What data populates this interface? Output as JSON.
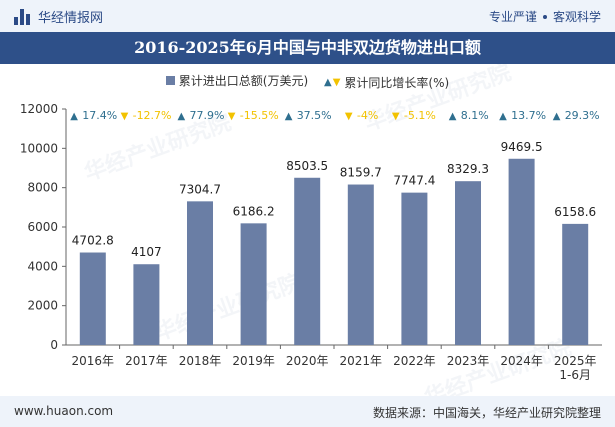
{
  "header": {
    "brand": "华经情报网",
    "tagline_left": "专业严谨",
    "tagline_right": "客观科学"
  },
  "title": "2016-2025年6月中国与中非双边货物进出口额",
  "legend": {
    "bar_label": "累计进出口总额(万美元)",
    "line_label": "累计同比增长率(%)"
  },
  "watermark": "华经产业研究院",
  "footer": {
    "site": "www.huaon.com",
    "source": "数据来源：中国海关，华经产业研究院整理"
  },
  "colors": {
    "bar": "#6a7ea5",
    "up": "#2f6f8f",
    "down": "#f2c200",
    "title_bg": "#2e5089"
  },
  "chart_data": {
    "type": "bar",
    "categories": [
      "2016年",
      "2017年",
      "2018年",
      "2019年",
      "2020年",
      "2021年",
      "2022年",
      "2023年",
      "2024年",
      "2025年\n1-6月"
    ],
    "series": [
      {
        "name": "累计进出口总额(万美元)",
        "values": [
          4702.8,
          4107,
          7304.7,
          6186.2,
          8503.5,
          8159.7,
          7747.4,
          8329.3,
          9469.5,
          6158.6
        ],
        "labels": [
          "4702.8",
          "4107",
          "7304.7",
          "6186.2",
          "8503.5",
          "8159.7",
          "7747.4",
          "8329.3",
          "9469.5",
          "6158.6"
        ]
      },
      {
        "name": "累计同比增长率(%)",
        "values": [
          17.4,
          -12.7,
          77.9,
          -15.5,
          37.5,
          -4,
          -5.1,
          8.1,
          13.7,
          29.3
        ],
        "labels": [
          "17.4%",
          "-12.7%",
          "77.9%",
          "-15.5%",
          "37.5%",
          "-4%",
          "-5.1%",
          "8.1%",
          "13.7%",
          "29.3%"
        ]
      }
    ],
    "yticks": [
      0,
      2000,
      4000,
      6000,
      8000,
      10000,
      12000
    ],
    "ylim": [
      0,
      12000
    ],
    "grid": false,
    "legend_position": "top-center"
  }
}
